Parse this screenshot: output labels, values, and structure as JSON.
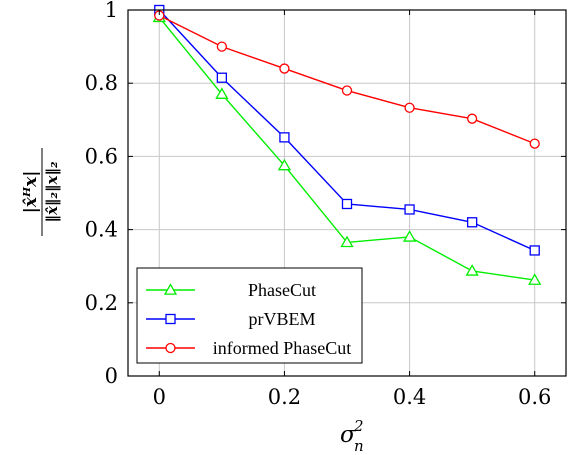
{
  "chart_data": {
    "type": "line",
    "x": [
      0,
      0.1,
      0.2,
      0.3,
      0.4,
      0.5,
      0.6
    ],
    "series": [
      {
        "name": "PhaseCut",
        "color": "#00ee00",
        "marker": "triangle",
        "values": [
          0.98,
          0.77,
          0.575,
          0.365,
          0.38,
          0.287,
          0.262
        ]
      },
      {
        "name": "prVBEM",
        "color": "#0000ff",
        "marker": "square",
        "values": [
          1.0,
          0.815,
          0.652,
          0.47,
          0.455,
          0.42,
          0.343
        ]
      },
      {
        "name": "informed PhaseCut",
        "color": "#ff0000",
        "marker": "circle",
        "values": [
          0.985,
          0.9,
          0.84,
          0.78,
          0.733,
          0.703,
          0.635
        ]
      }
    ],
    "xlim": [
      -0.05,
      0.65
    ],
    "ylim": [
      0,
      1
    ],
    "xticks": [
      "0",
      "0.2",
      "0.4",
      "0.6"
    ],
    "yticks": [
      "0",
      "0.2",
      "0.4",
      "0.6",
      "0.8",
      "1"
    ],
    "xlabel": {
      "base": "σ",
      "sup": "2",
      "sub": "n"
    },
    "ylabel": {
      "numerator": "|x̂ᴴx|",
      "denominator": "‖x̂‖₂‖x‖₂"
    },
    "grid": true,
    "legend_position": "bottom-left"
  }
}
